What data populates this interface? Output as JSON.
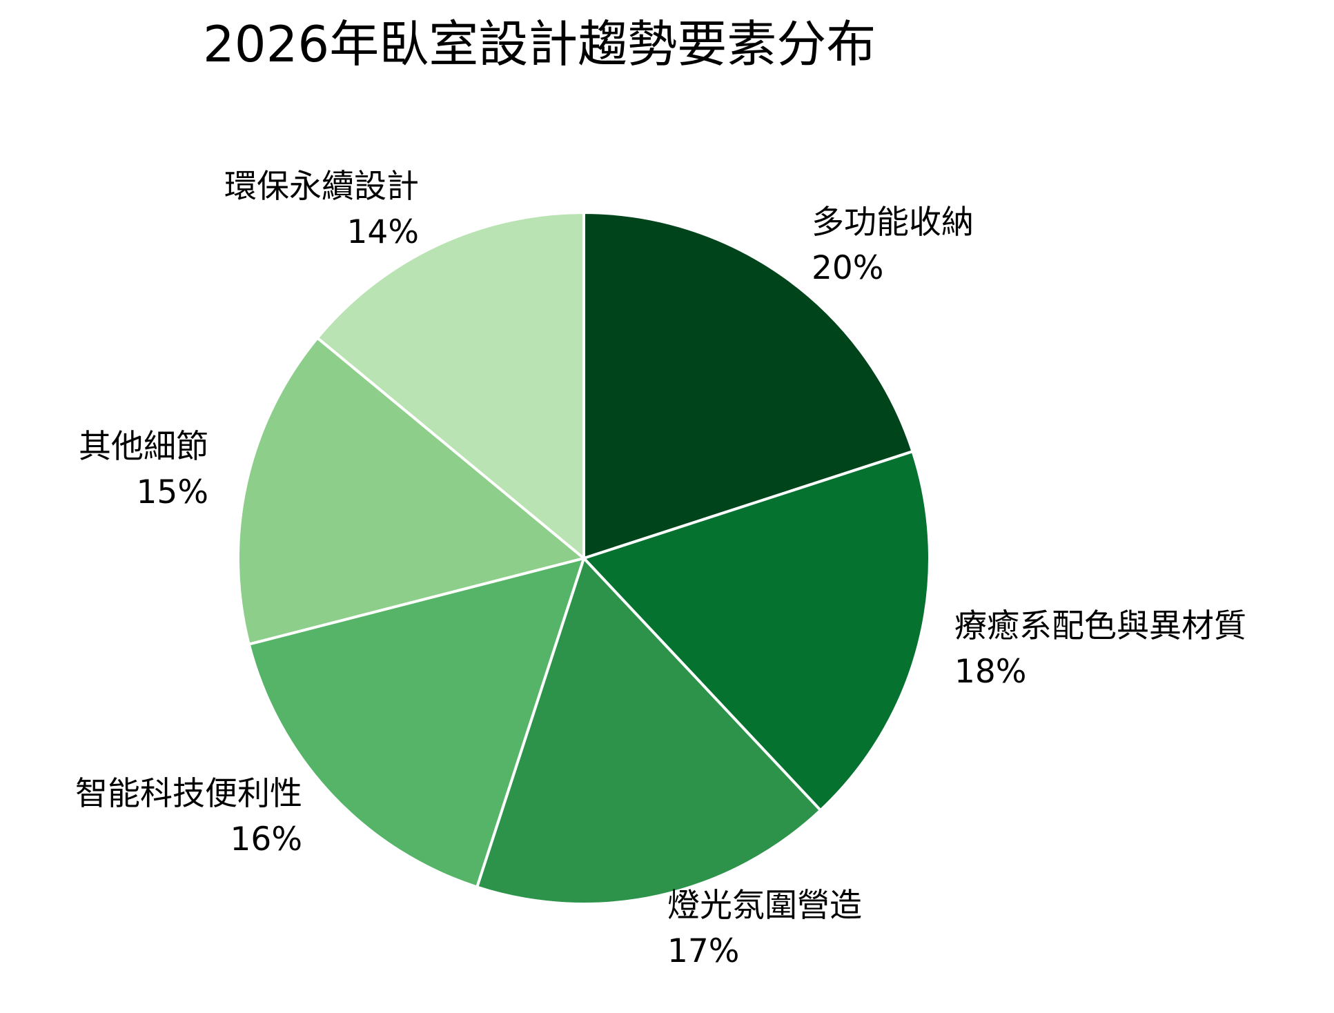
{
  "chart_data": {
    "type": "pie",
    "title": "2026年臥室設計趨勢要素分布",
    "categories": [
      "多功能收納",
      "療癒系配色與異材質",
      "燈光氛圍營造",
      "智能科技便利性",
      "其他細節",
      "環保永續設計"
    ],
    "values": [
      20,
      18,
      17,
      16,
      15,
      14
    ],
    "unit": "%",
    "start_angle": "12 o'clock, clockwise",
    "colors": [
      "#00441b",
      "#067230",
      "#2d934b",
      "#55b467",
      "#8dcf8a",
      "#b9e3b2"
    ],
    "legend": "none (direct labels)"
  },
  "slices": [
    {
      "label": "多功能收納",
      "pct": "20%"
    },
    {
      "label": "療癒系配色與異材質",
      "pct": "18%"
    },
    {
      "label": "燈光氛圍營造",
      "pct": "17%"
    },
    {
      "label": "智能科技便利性",
      "pct": "16%"
    },
    {
      "label": "其他細節",
      "pct": "15%"
    },
    {
      "label": "環保永續設計",
      "pct": "14%"
    }
  ]
}
